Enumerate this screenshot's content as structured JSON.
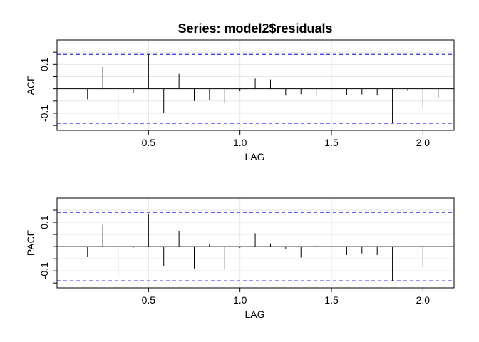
{
  "chart_data": {
    "title": "Series:  model2$residuals",
    "panels": [
      {
        "type": "bar",
        "ylabel": "ACF",
        "xlabel": "LAG",
        "xlim": [
          0,
          2.17
        ],
        "ylim": [
          -0.17,
          0.2
        ],
        "x_ticks": [
          "0.5",
          "1.0",
          "1.5",
          "2.0"
        ],
        "y_ticks": [
          "-0.1",
          "0.1"
        ],
        "conf_limit": 0.141,
        "grid": true,
        "lags": [
          0.0833,
          0.1667,
          0.25,
          0.3333,
          0.4167,
          0.5,
          0.5833,
          0.6667,
          0.75,
          0.8333,
          0.9167,
          1.0,
          1.0833,
          1.1667,
          1.25,
          1.3333,
          1.4167,
          1.5,
          1.5833,
          1.6667,
          1.75,
          1.8333,
          1.9167,
          2.0,
          2.0833
        ],
        "values": [
          0.0,
          -0.043,
          0.09,
          -0.125,
          -0.018,
          0.142,
          -0.1,
          0.061,
          -0.05,
          -0.047,
          -0.06,
          -0.01,
          0.042,
          0.038,
          -0.028,
          -0.022,
          -0.03,
          0.005,
          -0.025,
          -0.023,
          -0.028,
          -0.14,
          -0.008,
          -0.075,
          -0.035
        ]
      },
      {
        "type": "bar",
        "ylabel": "PACF",
        "xlabel": "LAG",
        "xlim": [
          0,
          2.17
        ],
        "ylim": [
          -0.17,
          0.2
        ],
        "x_ticks": [
          "0.5",
          "1.0",
          "1.5",
          "2.0"
        ],
        "y_ticks": [
          "-0.1",
          "0.1"
        ],
        "conf_limit": 0.141,
        "grid": true,
        "lags": [
          0.0833,
          0.1667,
          0.25,
          0.3333,
          0.4167,
          0.5,
          0.5833,
          0.6667,
          0.75,
          0.8333,
          0.9167,
          1.0,
          1.0833,
          1.1667,
          1.25,
          1.3333,
          1.4167,
          1.5,
          1.5833,
          1.6667,
          1.75,
          1.8333,
          1.9167,
          2.0,
          2.0833
        ],
        "values": [
          0.0,
          -0.043,
          0.09,
          -0.125,
          -0.005,
          0.135,
          -0.08,
          0.065,
          -0.09,
          0.01,
          -0.095,
          -0.005,
          0.055,
          0.013,
          -0.01,
          -0.045,
          0.005,
          -0.002,
          -0.035,
          -0.028,
          -0.035,
          -0.14,
          -0.003,
          -0.085,
          0.0
        ]
      }
    ],
    "colors": {
      "confidence_line": "#2c2cf0",
      "bars": "#000000",
      "grid": "#e6e6e6",
      "zero_line": "#000000"
    }
  }
}
